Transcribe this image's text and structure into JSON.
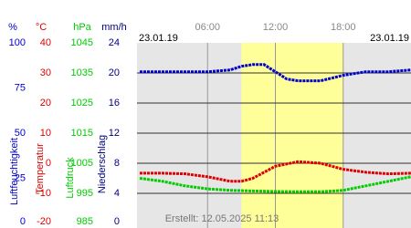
{
  "chart_data": {
    "type": "line",
    "date_start": "23.01.19",
    "date_end": "23.01.19",
    "footer": "Erstellt: 12.05.2025 11:13",
    "xlim": [
      0,
      24
    ],
    "xticks": [
      {
        "value": 6,
        "label": "06:00"
      },
      {
        "value": 12,
        "label": "12:00"
      },
      {
        "value": 18,
        "label": "18:00"
      }
    ],
    "highlight": [
      9,
      18
    ],
    "grid": true,
    "axes": [
      {
        "unit": "%",
        "label": "Luftfeuchtigkeit",
        "color": "#0000cc",
        "ylim": [
          0,
          100
        ],
        "yticks": [
          0,
          25,
          50,
          75,
          100
        ]
      },
      {
        "unit": "°C",
        "label": "Temperatur",
        "color": "#dd0000",
        "ylim": [
          -20,
          40
        ],
        "yticks": [
          -20,
          -10,
          0,
          10,
          20,
          30,
          40
        ]
      },
      {
        "unit": "hPa",
        "label": "Luftdruck",
        "color": "#00cc00",
        "ylim": [
          985,
          1045
        ],
        "yticks": [
          985,
          995,
          1005,
          1015,
          1025,
          1035,
          1045
        ]
      },
      {
        "unit": "mm/h",
        "label": "Niederschlag",
        "color": "#000080",
        "ylim": [
          0,
          24
        ],
        "yticks": [
          0,
          4,
          8,
          12,
          16,
          20,
          24
        ]
      }
    ],
    "series": [
      {
        "axis": 0,
        "color": "#0000cc",
        "x": [
          0,
          2,
          4,
          6,
          8,
          9,
          10,
          11,
          12,
          13,
          14,
          16,
          18,
          20,
          22,
          24
        ],
        "values": [
          84,
          84,
          84,
          84,
          85,
          87,
          88,
          88,
          84,
          80,
          79,
          79,
          82,
          84,
          84,
          85
        ]
      },
      {
        "axis": 1,
        "color": "#dd0000",
        "x": [
          0,
          2,
          4,
          6,
          8,
          9,
          10,
          12,
          14,
          16,
          18,
          20,
          22,
          24
        ],
        "values": [
          -3.3,
          -3.3,
          -3.5,
          -4.5,
          -6,
          -6,
          -5,
          -1,
          0.5,
          0,
          -2,
          -3,
          -3.5,
          -3.3
        ]
      },
      {
        "axis": 2,
        "color": "#00cc00",
        "x": [
          0,
          2,
          4,
          6,
          8,
          10,
          12,
          14,
          16,
          18,
          20,
          22,
          24
        ],
        "values": [
          1000,
          999,
          997.5,
          996.5,
          996,
          995.8,
          995.6,
          995.5,
          995.5,
          996,
          997.5,
          999,
          1000.5
        ]
      }
    ]
  }
}
